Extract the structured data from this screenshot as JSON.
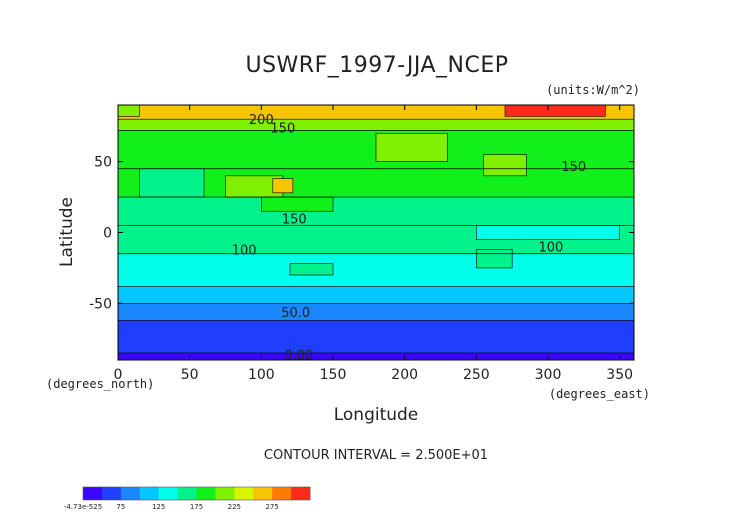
{
  "chart_data": {
    "type": "heatmap",
    "title": "USWRF_1997-JJA_NCEP",
    "units": "(units:W/m^2)",
    "xlabel": "Longitude",
    "ylabel": "Latitude",
    "xunit_label": "(degrees_east)",
    "yunit_label": "(degrees_north)",
    "xlim": [
      0,
      360
    ],
    "ylim": [
      -90,
      90
    ],
    "xticks": [
      "0",
      "50",
      "100",
      "150",
      "200",
      "250",
      "300",
      "350"
    ],
    "yticks": [
      "-50",
      "0",
      "50"
    ],
    "contour_interval_text": "CONTOUR INTERVAL = 2.500E+01",
    "contour_labels": [
      {
        "text": "200",
        "lon": 100,
        "lat": 80
      },
      {
        "text": "150",
        "lon": 115,
        "lat": 74
      },
      {
        "text": "150",
        "lon": 318,
        "lat": 47
      },
      {
        "text": "150",
        "lon": 123,
        "lat": 10
      },
      {
        "text": "100",
        "lon": 88,
        "lat": -12
      },
      {
        "text": "100",
        "lon": 302,
        "lat": -10
      },
      {
        "text": "50.0",
        "lon": 124,
        "lat": -56
      },
      {
        "text": "0.00",
        "lon": 126,
        "lat": -86
      }
    ],
    "latitude_bands": [
      {
        "lat_from": -90,
        "lat_to": -85,
        "value": 0
      },
      {
        "lat_from": -85,
        "lat_to": -62,
        "value": 25
      },
      {
        "lat_from": -62,
        "lat_to": -50,
        "value": 50
      },
      {
        "lat_from": -50,
        "lat_to": -38,
        "value": 75
      },
      {
        "lat_from": -38,
        "lat_to": -15,
        "value": 100
      },
      {
        "lat_from": -15,
        "lat_to": 5,
        "value": 125
      },
      {
        "lat_from": 5,
        "lat_to": 25,
        "value": 140
      },
      {
        "lat_from": 25,
        "lat_to": 45,
        "value": 150
      },
      {
        "lat_from": 45,
        "lat_to": 72,
        "value": 150
      },
      {
        "lat_from": 72,
        "lat_to": 80,
        "value": 175
      },
      {
        "lat_from": 80,
        "lat_to": 90,
        "value": 230
      }
    ],
    "patches": [
      {
        "lon_from": 180,
        "lon_to": 230,
        "lat_from": 50,
        "lat_to": 70,
        "value": 175
      },
      {
        "lon_from": 75,
        "lon_to": 115,
        "lat_from": 25,
        "lat_to": 40,
        "value": 175
      },
      {
        "lon_from": 108,
        "lon_to": 122,
        "lat_from": 28,
        "lat_to": 38,
        "value": 225
      },
      {
        "lon_from": 15,
        "lon_to": 60,
        "lat_from": 25,
        "lat_to": 45,
        "value": 125
      },
      {
        "lon_from": 255,
        "lon_to": 285,
        "lat_from": 40,
        "lat_to": 55,
        "value": 175
      },
      {
        "lon_from": 270,
        "lon_to": 340,
        "lat_from": 82,
        "lat_to": 90,
        "value": 275
      },
      {
        "lon_from": 0,
        "lon_to": 15,
        "lat_from": 82,
        "lat_to": 90,
        "value": 175
      },
      {
        "lon_from": 250,
        "lon_to": 350,
        "lat_from": -5,
        "lat_to": 5,
        "value": 100
      },
      {
        "lon_from": 250,
        "lon_to": 275,
        "lat_from": -25,
        "lat_to": -12,
        "value": 125
      },
      {
        "lon_from": 120,
        "lon_to": 150,
        "lat_from": -30,
        "lat_to": -22,
        "value": 125
      },
      {
        "lon_from": 100,
        "lon_to": 150,
        "lat_from": 15,
        "lat_to": 25,
        "value": 150
      }
    ],
    "colorbar": {
      "tick_labels": [
        "-4.73e-525",
        "75",
        "125",
        "175",
        "225",
        "275"
      ],
      "levels": [
        0,
        25,
        50,
        75,
        100,
        125,
        150,
        175,
        200,
        225,
        250,
        275
      ],
      "colors": [
        "#3a06ff",
        "#1f3fff",
        "#1a87ff",
        "#00c8ff",
        "#00ffe8",
        "#00f28a",
        "#10f01a",
        "#7ef000",
        "#d6f700",
        "#f6c400",
        "#ff7a00",
        "#ff2a1a"
      ]
    }
  }
}
